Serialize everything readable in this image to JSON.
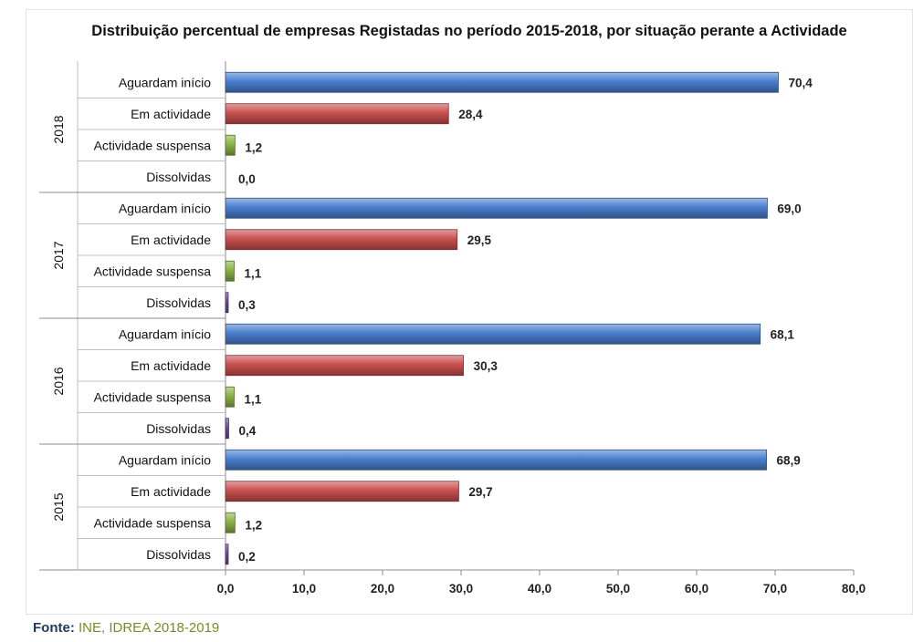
{
  "title": "Distribuição percentual de empresas Registadas no período 2015-2018, por situação perante a Actividade",
  "source": {
    "label": "Fonte:",
    "text": "INE, IDREA 2018-2019"
  },
  "colors": {
    "Aguardam início": "#4a7fcf",
    "Em actividade": "#c9504e",
    "Actividade suspensa": "#8ab345",
    "Dissolvidas": "#6a4d9a"
  },
  "chart_data": {
    "type": "bar",
    "orientation": "horizontal",
    "title": "Distribuição percentual de empresas Registadas no período 2015-2018, por situação perante a Actividade",
    "xlim": [
      0,
      80
    ],
    "xticks": [
      "0,0",
      "10,0",
      "20,0",
      "30,0",
      "40,0",
      "50,0",
      "60,0",
      "70,0",
      "80,0"
    ],
    "groups": [
      {
        "name": "2018",
        "bars": [
          {
            "category": "Aguardam início",
            "value": 70.4,
            "label": "70,4"
          },
          {
            "category": "Em actividade",
            "value": 28.4,
            "label": "28,4"
          },
          {
            "category": "Actividade suspensa",
            "value": 1.2,
            "label": "1,2"
          },
          {
            "category": "Dissolvidas",
            "value": 0.0,
            "label": "0,0"
          }
        ]
      },
      {
        "name": "2017",
        "bars": [
          {
            "category": "Aguardam início",
            "value": 69.0,
            "label": "69,0"
          },
          {
            "category": "Em actividade",
            "value": 29.5,
            "label": "29,5"
          },
          {
            "category": "Actividade suspensa",
            "value": 1.1,
            "label": "1,1"
          },
          {
            "category": "Dissolvidas",
            "value": 0.3,
            "label": "0,3"
          }
        ]
      },
      {
        "name": "2016",
        "bars": [
          {
            "category": "Aguardam início",
            "value": 68.1,
            "label": "68,1"
          },
          {
            "category": "Em actividade",
            "value": 30.3,
            "label": "30,3"
          },
          {
            "category": "Actividade suspensa",
            "value": 1.1,
            "label": "1,1"
          },
          {
            "category": "Dissolvidas",
            "value": 0.4,
            "label": "0,4"
          }
        ]
      },
      {
        "name": "2015",
        "bars": [
          {
            "category": "Aguardam início",
            "value": 68.9,
            "label": "68,9"
          },
          {
            "category": "Em actividade",
            "value": 29.7,
            "label": "29,7"
          },
          {
            "category": "Actividade suspensa",
            "value": 1.2,
            "label": "1,2"
          },
          {
            "category": "Dissolvidas",
            "value": 0.2,
            "label": "0,2"
          }
        ]
      }
    ]
  }
}
